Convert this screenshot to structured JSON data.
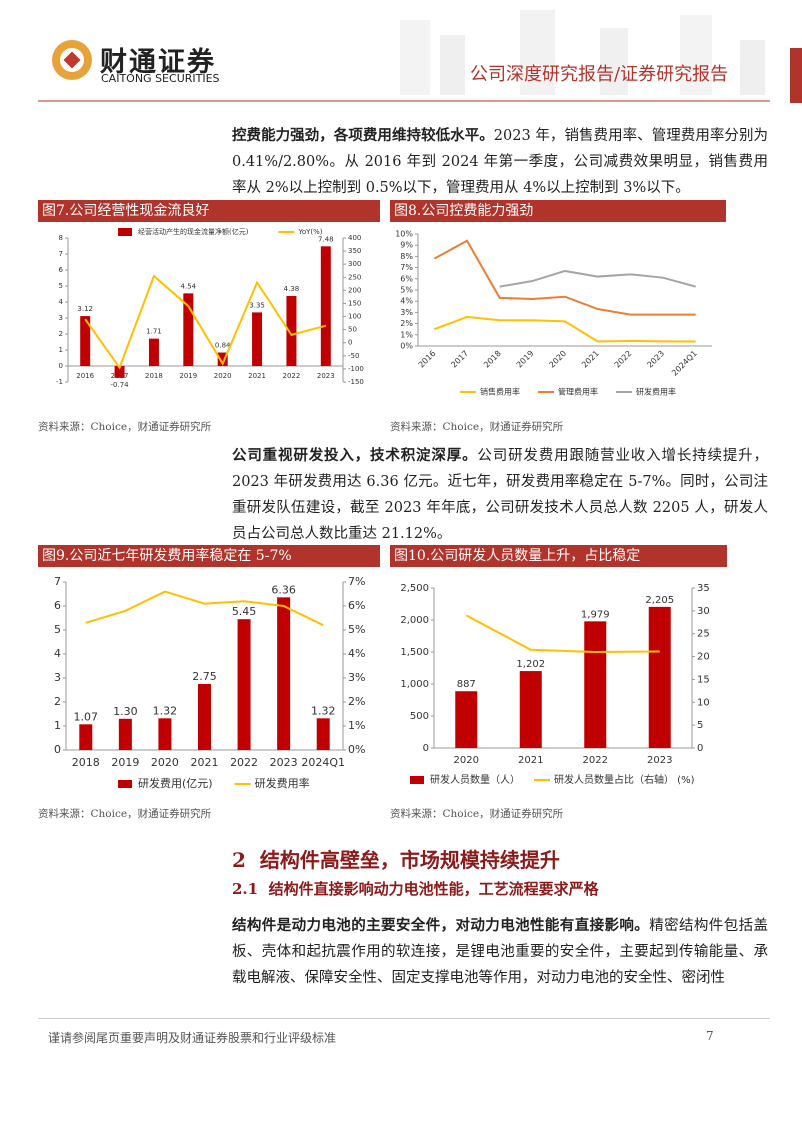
{
  "header": {
    "logo_cn": "财通证券",
    "logo_en": "CAITONG SECURITIES",
    "report_type": "公司深度研究报告/证券研究报告"
  },
  "paragraphs": [
    {
      "lead": "控费能力强劲，各项费用维持较低水平。",
      "text": "2023 年，销售费用率、管理费用率分别为 0.41%/2.80%。从 2016 年到 2024 年第一季度，公司减费效果明显，销售费用率从 2%以上控制到 0.5%以下，管理费用从 4%以上控制到 3%以下。"
    },
    {
      "lead": "公司重视研发投入，技术积淀深厚。",
      "text": "公司研发费用跟随营业收入增长持续提升，2023 年研发费用达 6.36 亿元。近七年，研发费用率稳定在 5-7%。同时，公司注重研发队伍建设，截至 2023 年年底，公司研发技术人员总人数 2205 人，研发人员占公司总人数比重达 21.12%。"
    },
    {
      "lead": "结构件是动力电池的主要安全件，对动力电池性能有直接影响。",
      "text": "精密结构件包括盖板、壳体和起抗震作用的软连接，是锂电池重要的安全件，主要起到传输能量、承载电解液、保障安全性、固定支撑电池等作用，对动力电池的安全性、密闭性"
    }
  ],
  "section": {
    "number": "2",
    "title": "结构件高壁垒，市场规模持续提升"
  },
  "subsection": {
    "number": "2.1",
    "title": "结构件直接影响动力电池性能，工艺流程要求严格"
  },
  "footer": {
    "disclaimer": "谨请参阅尾页重要声明及财通证券股票和行业评级标准",
    "page": 7
  },
  "chart_data": [
    {
      "type": "combo",
      "title": "图7.公司经营性现金流良好",
      "source": "资料来源：Choice，财通证券研究所",
      "categories": [
        "2016",
        "2017",
        "2018",
        "2019",
        "2020",
        "2021",
        "2022",
        "2023"
      ],
      "series": [
        {
          "name": "经营活动产生的现金流量净额(亿元)",
          "type": "bar",
          "color": "#c00000",
          "values": [
            3.12,
            -0.74,
            1.71,
            4.54,
            0.84,
            3.35,
            4.38,
            7.48
          ]
        },
        {
          "name": "YoY(%)",
          "type": "line",
          "axis": "y2",
          "color": "#ffc000",
          "values": [
            90,
            -95,
            255,
            140,
            -80,
            230,
            30,
            65
          ]
        }
      ],
      "ylim": [
        -1,
        8
      ],
      "yticks": [
        -1,
        0,
        1,
        2,
        3,
        4,
        5,
        6,
        7,
        8
      ],
      "y2lim": [
        -150,
        400
      ],
      "y2ticks": [
        -150,
        -100,
        -50,
        0,
        50,
        100,
        150,
        200,
        250,
        300,
        350,
        400
      ],
      "legend": "top"
    },
    {
      "type": "line",
      "title": "图8.公司控费能力强劲",
      "source": "资料来源：Choice，财通证券研究所",
      "categories": [
        "2016",
        "2017",
        "2018",
        "2019",
        "2020",
        "2021",
        "2022",
        "2023",
        "2024Q1"
      ],
      "series": [
        {
          "name": "销售费用率",
          "color": "#ffc000",
          "values": [
            1.5,
            2.6,
            2.3,
            2.3,
            2.2,
            0.4,
            0.45,
            0.41,
            0.4
          ]
        },
        {
          "name": "管理费用率",
          "color": "#ed7d31",
          "values": [
            7.8,
            9.4,
            4.3,
            4.2,
            4.4,
            3.3,
            2.8,
            2.8,
            2.8
          ]
        },
        {
          "name": "研发费用率",
          "color": "#a5a5a5",
          "values": [
            null,
            null,
            5.3,
            5.8,
            6.7,
            6.2,
            6.4,
            6.1,
            5.3
          ]
        }
      ],
      "ylim": [
        0,
        10
      ],
      "yticks": [
        {
          "value": 0,
          "label": "0%"
        },
        {
          "value": 1,
          "label": "1%"
        },
        {
          "value": 2,
          "label": "2%"
        },
        {
          "value": 3,
          "label": "3%"
        },
        {
          "value": 4,
          "label": "4%"
        },
        {
          "value": 5,
          "label": "5%"
        },
        {
          "value": 6,
          "label": "6%"
        },
        {
          "value": 7,
          "label": "7%"
        },
        {
          "value": 8,
          "label": "8%"
        },
        {
          "value": 9,
          "label": "9%"
        },
        {
          "value": 10,
          "label": "10%"
        }
      ],
      "legend": "bottom"
    },
    {
      "type": "combo",
      "title": "图9.公司近七年研发费用率稳定在 5-7%",
      "source": "资料来源：Choice，财通证券研究所",
      "categories": [
        "2018",
        "2019",
        "2020",
        "2021",
        "2022",
        "2023",
        "2024Q1"
      ],
      "series": [
        {
          "name": "研发费用(亿元)",
          "type": "bar",
          "color": "#c00000",
          "values": [
            1.07,
            1.3,
            1.32,
            2.75,
            5.45,
            6.36,
            1.32
          ],
          "value_labels": [
            "1.07",
            "1.30",
            "1.32",
            "2.75",
            "5.45",
            "6.36",
            "1.32"
          ]
        },
        {
          "name": "研发费用率",
          "type": "line",
          "axis": "y2",
          "color": "#ffc000",
          "values": [
            5.3,
            5.8,
            6.6,
            6.1,
            6.2,
            6.0,
            5.2
          ]
        }
      ],
      "ylim": [
        0,
        7
      ],
      "yticks": [
        0,
        1,
        2,
        3,
        4,
        5,
        6,
        7
      ],
      "y2lim": [
        0,
        7
      ],
      "y2ticks": [
        {
          "value": 0,
          "label": "0%"
        },
        {
          "value": 1,
          "label": "1%"
        },
        {
          "value": 2,
          "label": "2%"
        },
        {
          "value": 3,
          "label": "3%"
        },
        {
          "value": 4,
          "label": "4%"
        },
        {
          "value": 5,
          "label": "5%"
        },
        {
          "value": 6,
          "label": "6%"
        },
        {
          "value": 7,
          "label": "7%"
        }
      ],
      "legend": "bottom"
    },
    {
      "type": "combo",
      "title": "图10.公司研发人员数量上升，占比稳定",
      "source": "资料来源：Choice，财通证券研究所",
      "categories": [
        "2020",
        "2021",
        "2022",
        "2023"
      ],
      "series": [
        {
          "name": "研发人员数量（人）",
          "type": "bar",
          "color": "#c00000",
          "values": [
            887,
            1202,
            1979,
            2205
          ],
          "value_labels": [
            "887",
            "1,202",
            "1,979",
            "2,205"
          ]
        },
        {
          "name": "研发人员数量占比（右轴） (%)",
          "type": "line",
          "axis": "y2",
          "color": "#ffc000",
          "values": [
            29,
            21.5,
            21,
            21.12
          ]
        }
      ],
      "ylim": [
        0,
        2500
      ],
      "yticks": [
        0,
        500,
        {
          "value": 1000,
          "label": "1,000"
        },
        {
          "value": 1500,
          "label": "1,500"
        },
        {
          "value": 2000,
          "label": "2,000"
        },
        {
          "value": 2500,
          "label": "2,500"
        }
      ],
      "y2lim": [
        0,
        35
      ],
      "y2ticks": [
        0,
        5,
        10,
        15,
        20,
        25,
        30,
        35
      ],
      "legend": "bottom"
    }
  ]
}
